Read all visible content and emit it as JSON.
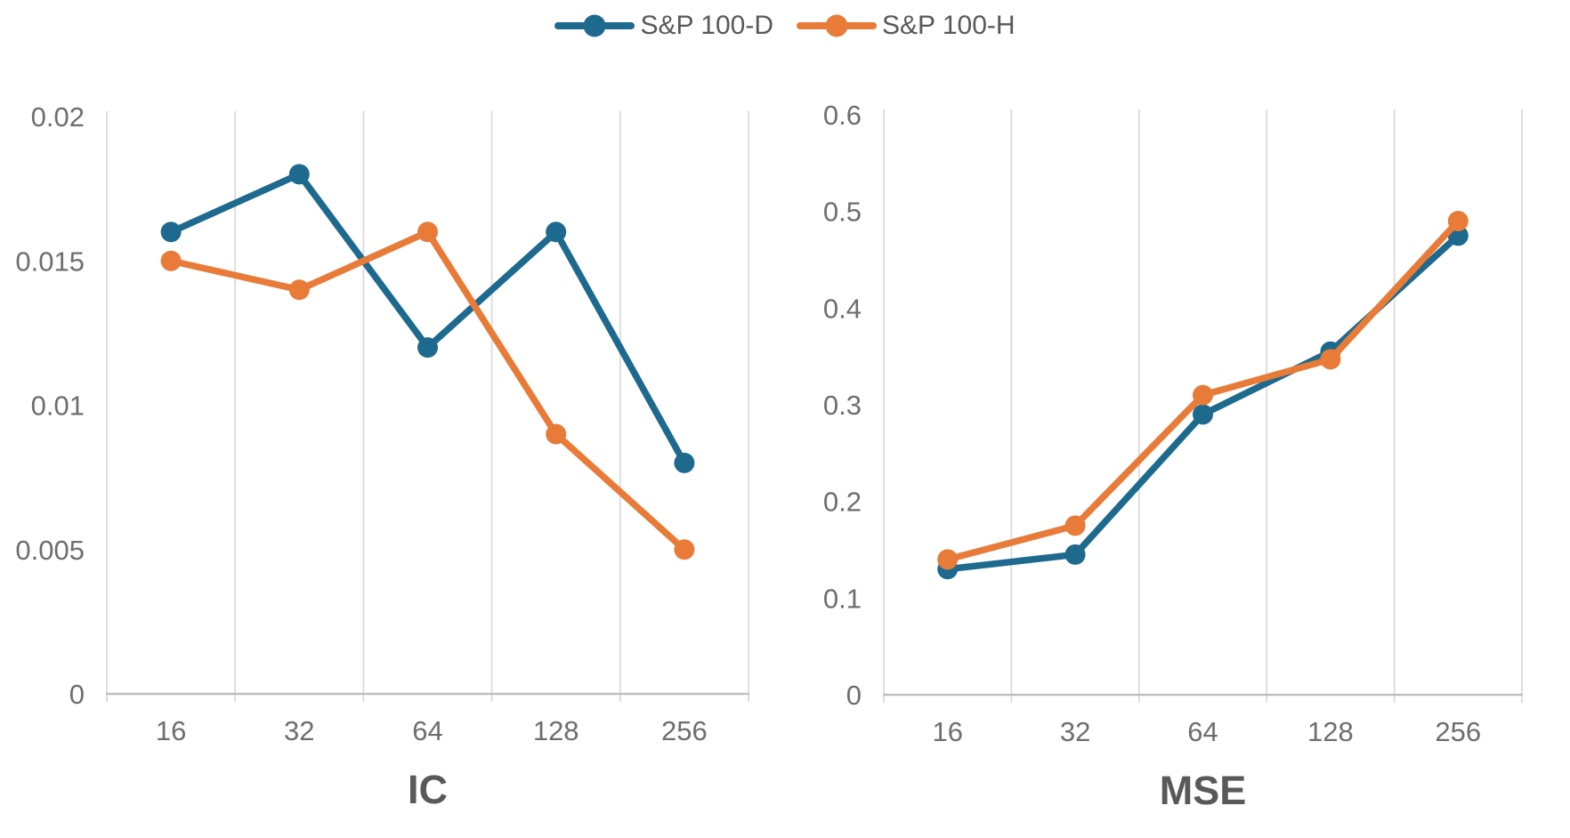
{
  "legend": {
    "items": [
      {
        "label": "S&P 100-D",
        "color": "#1E6A8E"
      },
      {
        "label": "S&P 100-H",
        "color": "#E97B38"
      }
    ]
  },
  "colors": {
    "gridline": "#D9D9D9",
    "axis_line": "#BFBFBF",
    "tick_text": "#6E6E6E",
    "title_text": "#595959"
  },
  "chart_data": [
    {
      "type": "line",
      "title": "IC",
      "categories": [
        "16",
        "32",
        "64",
        "128",
        "256"
      ],
      "ylim": [
        0,
        0.02
      ],
      "y_ticks": [
        {
          "label": "0",
          "value": 0
        },
        {
          "label": "0.005",
          "value": 0.005
        },
        {
          "label": "0.01",
          "value": 0.01
        },
        {
          "label": "0.015",
          "value": 0.015
        },
        {
          "label": "0.02",
          "value": 0.02
        }
      ],
      "grid": "vertical-only",
      "legend_position": "top",
      "series": [
        {
          "name": "S&P 100-D",
          "values": [
            0.016,
            0.018,
            0.012,
            0.016,
            0.008
          ]
        },
        {
          "name": "S&P 100-H",
          "values": [
            0.015,
            0.014,
            0.016,
            0.009,
            0.005
          ]
        }
      ]
    },
    {
      "type": "line",
      "title": "MSE",
      "categories": [
        "16",
        "32",
        "64",
        "128",
        "256"
      ],
      "ylim": [
        0,
        0.6
      ],
      "y_ticks": [
        {
          "label": "0",
          "value": 0
        },
        {
          "label": "0.1",
          "value": 0.1
        },
        {
          "label": "0.2",
          "value": 0.2
        },
        {
          "label": "0.3",
          "value": 0.3
        },
        {
          "label": "0.4",
          "value": 0.4
        },
        {
          "label": "0.5",
          "value": 0.5
        },
        {
          "label": "0.6",
          "value": 0.6
        }
      ],
      "grid": "vertical-only",
      "legend_position": "top",
      "series": [
        {
          "name": "S&P 100-D",
          "values": [
            0.13,
            0.145,
            0.29,
            0.355,
            0.475
          ]
        },
        {
          "name": "S&P 100-H",
          "values": [
            0.14,
            0.175,
            0.31,
            0.347,
            0.49
          ]
        }
      ]
    }
  ]
}
